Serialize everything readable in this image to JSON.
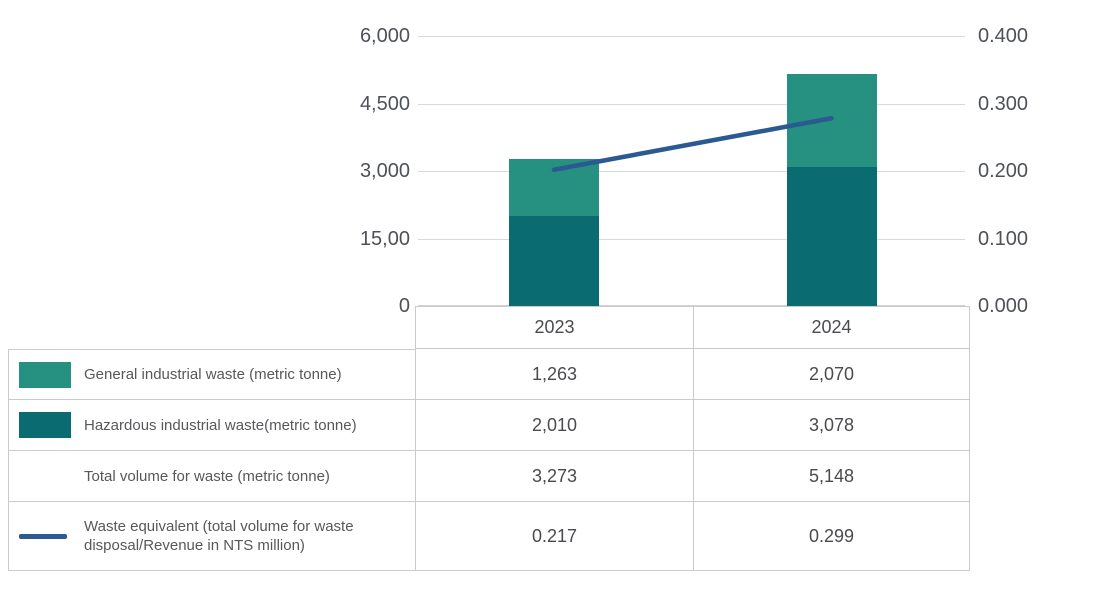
{
  "accent_colors": {
    "general_waste": "#269180",
    "hazardous_waste": "#0a6b70",
    "line": "#2b5991",
    "gridline": "#d9d9d9",
    "table_border": "#cbcbcb",
    "axis_text": "#4e5257"
  },
  "chart_data": {
    "type": "combo-stacked-bar-line",
    "categories": [
      "2023",
      "2024"
    ],
    "series": [
      {
        "name": "General industrial waste (metric tonne)",
        "type": "bar",
        "stack_position": "top",
        "values": [
          1263,
          2070
        ],
        "color": "#269180"
      },
      {
        "name": "Hazardous industrial waste(metric tonne)",
        "type": "bar",
        "stack_position": "bottom",
        "values": [
          2010,
          3078
        ],
        "color": "#0a6b70"
      },
      {
        "name": "Total volume for waste (metric tonne)",
        "type": "total",
        "values": [
          3273,
          5148
        ]
      },
      {
        "name": "Waste equivalent (total volume for waste disposal/Revenue in NTS million)",
        "type": "line",
        "axis": "right",
        "values": [
          0.217,
          0.299
        ],
        "color": "#2b5991"
      }
    ],
    "left_axis": {
      "min": 0,
      "max": 6000,
      "tick_labels_top_to_bottom": [
        "6,000",
        "4,500",
        "3,000",
        "15,00",
        "0"
      ]
    },
    "right_axis": {
      "min": 0,
      "max": 0.4,
      "tick_labels_top_to_bottom": [
        "0.400",
        "0.300",
        "0.200",
        "0.100",
        "0.000"
      ]
    },
    "grid": true,
    "legend_position": "table-left-column"
  },
  "table": {
    "column_headers": [
      "2023",
      "2024"
    ],
    "rows": [
      {
        "label": "General industrial waste (metric tonne)",
        "swatch": "general_waste",
        "values": [
          "1,263",
          "2,070"
        ]
      },
      {
        "label": "Hazardous industrial waste(metric tonne)",
        "swatch": "hazardous_waste",
        "values": [
          "2,010",
          "3,078"
        ]
      },
      {
        "label": "Total volume for waste (metric tonne)",
        "swatch": "none",
        "values": [
          "3,273",
          "5,148"
        ]
      },
      {
        "label": "Waste equivalent (total volume for waste disposal/Revenue in NTS million)",
        "swatch": "line",
        "values": [
          "0.217",
          "0.299"
        ]
      }
    ]
  }
}
